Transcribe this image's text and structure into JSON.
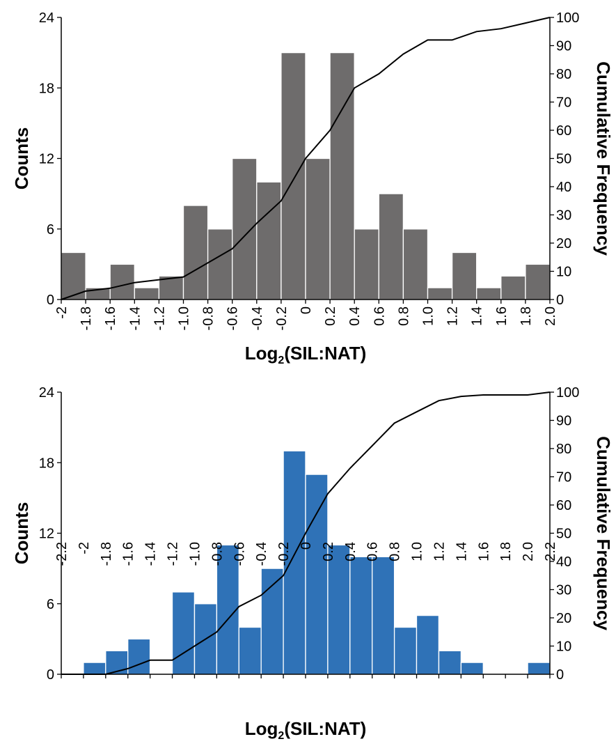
{
  "chart_data": [
    {
      "type": "bar",
      "bar_color": "#6e6c6c",
      "line_color": "#000000",
      "xlabel": "Log",
      "xlabel_sub": "2",
      "xlabel_rest": "(SIL:NAT)",
      "ylabel": "Counts",
      "ylabel_right": "Cumulative Frequency",
      "ylim": [
        0,
        24
      ],
      "y_ticks": [
        "0",
        "6",
        "12",
        "18",
        "24"
      ],
      "y2lim": [
        0,
        100
      ],
      "y2_ticks": [
        "0",
        "10",
        "20",
        "30",
        "40",
        "50",
        "60",
        "70",
        "80",
        "90",
        "100"
      ],
      "x_ticks": [
        "-2",
        "-1.8",
        "-1.6",
        "-1.4",
        "-1.2",
        "-1.0",
        "-0.8",
        "-0.6",
        "-0.4",
        "-0.2",
        "0",
        "0.2",
        "0.4",
        "0.6",
        "0.8",
        "1.0",
        "1.2",
        "1.4",
        "1.6",
        "1.8",
        "2.0"
      ],
      "series": [
        {
          "type": "bar",
          "bins": [
            "-1.8",
            "-1.6",
            "-1.4",
            "-1.2",
            "-1.0",
            "-0.8",
            "-0.6",
            "-0.4",
            "-0.2",
            "0",
            "0.2",
            "0.4",
            "0.6",
            "0.8",
            "1.0",
            "1.2",
            "1.4",
            "1.6",
            "1.8",
            "2.0"
          ],
          "values": [
            4,
            1,
            3,
            1,
            2,
            8,
            6,
            12,
            10,
            21,
            12,
            21,
            6,
            9,
            6,
            1,
            4,
            1,
            2,
            3
          ]
        },
        {
          "type": "line",
          "axis": "right",
          "x": [
            "-2",
            "-1.8",
            "-1.6",
            "-1.4",
            "-1.2",
            "-1.0",
            "-0.8",
            "-0.6",
            "-0.4",
            "-0.2",
            "0",
            "0.2",
            "0.4",
            "0.6",
            "0.8",
            "1.0",
            "1.2",
            "1.4",
            "1.6",
            "1.8",
            "2.0"
          ],
          "values": [
            0,
            3,
            4,
            6,
            7,
            8,
            13,
            18,
            27,
            35,
            50,
            60,
            75,
            80,
            87,
            92,
            92,
            95,
            96,
            98,
            100
          ]
        }
      ]
    },
    {
      "type": "bar",
      "bar_color": "#2f72b7",
      "line_color": "#000000",
      "xlabel": "Log",
      "xlabel_sub": "2",
      "xlabel_rest": "(SIL:NAT)",
      "ylabel": "Counts",
      "ylabel_right": "Cumulative Frequency",
      "ylim": [
        0,
        24
      ],
      "y_ticks": [
        "0",
        "6",
        "12",
        "18",
        "24"
      ],
      "y2lim": [
        0,
        100
      ],
      "y2_ticks": [
        "0",
        "10",
        "20",
        "30",
        "40",
        "50",
        "60",
        "70",
        "80",
        "90",
        "100"
      ],
      "x_ticks": [
        "-2.2",
        "-2",
        "-1.8",
        "-1.6",
        "-1.4",
        "-1.2",
        "-1.0",
        "-0.8",
        "-0.6",
        "-0.4",
        "-0.2",
        "0",
        "0.2",
        "0.4",
        "0.6",
        "0.8",
        "1.0",
        "1.2",
        "1.4",
        "1.6",
        "1.8",
        "2.0",
        "2.2"
      ],
      "series": [
        {
          "type": "bar",
          "bins": [
            "-2",
            "-1.8",
            "-1.6",
            "-1.4",
            "-1.2",
            "-1.0",
            "-0.8",
            "-0.6",
            "-0.4",
            "-0.2",
            "0",
            "0.2",
            "0.4",
            "0.6",
            "0.8",
            "1.0",
            "1.2",
            "1.4",
            "1.6",
            "1.8",
            "2.0",
            "2.2"
          ],
          "values": [
            0,
            1,
            2,
            3,
            0,
            7,
            6,
            11,
            4,
            9,
            19,
            17,
            11,
            10,
            10,
            4,
            5,
            2,
            1,
            0,
            0,
            1
          ]
        },
        {
          "type": "line",
          "axis": "right",
          "x": [
            "-2.2",
            "-2",
            "-1.8",
            "-1.6",
            "-1.4",
            "-1.2",
            "-1.0",
            "-0.8",
            "-0.6",
            "-0.4",
            "-0.2",
            "0",
            "0.2",
            "0.4",
            "0.6",
            "0.8",
            "1.0",
            "1.2",
            "1.4",
            "1.6",
            "1.8",
            "2.0",
            "2.2"
          ],
          "values": [
            0,
            0,
            0,
            2,
            5,
            5,
            10,
            15,
            24,
            28,
            35,
            50,
            64,
            73,
            81,
            89,
            93,
            97,
            98.5,
            99,
            99,
            99,
            100
          ]
        }
      ]
    }
  ]
}
